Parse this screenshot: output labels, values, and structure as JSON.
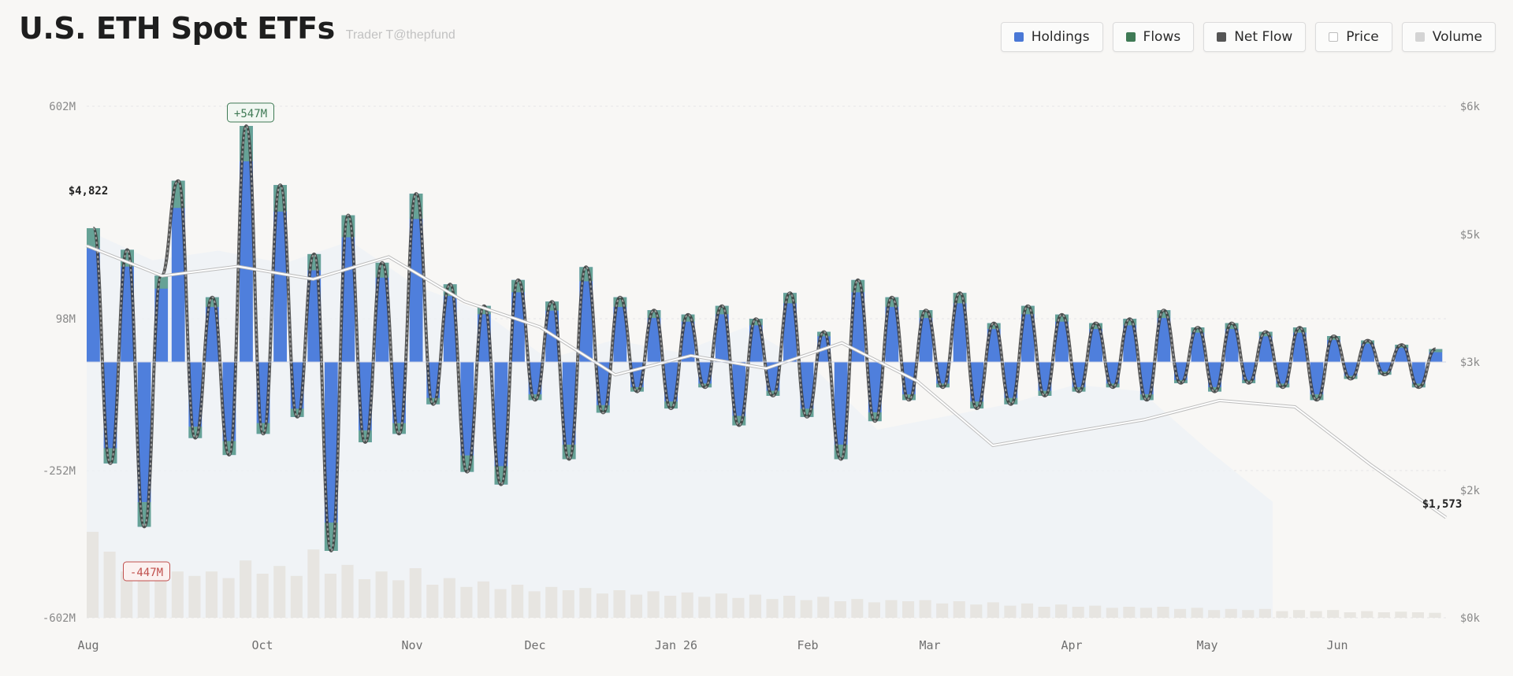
{
  "header": {
    "title": "U.S. ETH Spot ETFs",
    "subtitle": "Trader T@thepfund"
  },
  "legend": [
    {
      "key": "holdings",
      "label": "Holdings",
      "color": "#4a78d6"
    },
    {
      "key": "flows",
      "label": "Flows",
      "color": "#3f7a55"
    },
    {
      "key": "netflow",
      "label": "Net Flow",
      "color": "#555555"
    },
    {
      "key": "price",
      "label": "Price",
      "color": "#ffffff"
    },
    {
      "key": "volume",
      "label": "Volume",
      "color": "#d4d4d4"
    }
  ],
  "chart_data": {
    "type": "bar",
    "y_left": {
      "ticks": [
        "602M",
        "98M",
        "-252M",
        "-602M"
      ],
      "range": [
        -602,
        602
      ],
      "unit": "M"
    },
    "y_right": {
      "ticks": [
        "$6k",
        "$5k",
        "$3k",
        "$2k",
        "$0k"
      ],
      "range": [
        0,
        6000
      ]
    },
    "x_ticks": [
      "Aug",
      "Oct",
      "Nov",
      "Dec",
      "Jan 26",
      "Feb",
      "Mar",
      "Apr",
      "May",
      "Jun"
    ],
    "annotations": {
      "max_flow": "+547M",
      "min_flow": "-447M",
      "price_start": "$4,822",
      "price_end": "$1,573"
    },
    "price_series": [
      {
        "month": "Aug",
        "price": 4822
      },
      {
        "month": "Aug",
        "price": 4350
      },
      {
        "month": "Sep",
        "price": 4500
      },
      {
        "month": "Oct",
        "price": 4300
      },
      {
        "month": "Oct",
        "price": 4650
      },
      {
        "month": "Nov",
        "price": 3950
      },
      {
        "month": "Nov",
        "price": 3550
      },
      {
        "month": "Dec",
        "price": 2900
      },
      {
        "month": "Dec",
        "price": 3100
      },
      {
        "month": "Jan 26",
        "price": 2950
      },
      {
        "month": "Jan 26",
        "price": 3300
      },
      {
        "month": "Feb",
        "price": 2850
      },
      {
        "month": "Feb",
        "price": 2350
      },
      {
        "month": "Mar",
        "price": 2450
      },
      {
        "month": "Apr",
        "price": 2550
      },
      {
        "month": "Apr",
        "price": 2700
      },
      {
        "month": "May",
        "price": 2650
      },
      {
        "month": "Jun",
        "price": 2200
      },
      {
        "month": "Jun",
        "price": 1573
      }
    ],
    "net_flow_series_M": [
      310,
      -240,
      260,
      -390,
      200,
      420,
      -180,
      150,
      -220,
      547,
      -170,
      410,
      -130,
      250,
      -447,
      340,
      -190,
      230,
      -170,
      390,
      -100,
      180,
      -260,
      130,
      -290,
      190,
      -90,
      140,
      -230,
      220,
      -120,
      150,
      -70,
      120,
      -110,
      110,
      -60,
      130,
      -150,
      100,
      -80,
      160,
      -130,
      70,
      -230,
      190,
      -140,
      150,
      -90,
      120,
      -60,
      160,
      -110,
      90,
      -100,
      130,
      -80,
      110,
      -70,
      90,
      -60,
      100,
      -90,
      120,
      -50,
      80,
      -70,
      90,
      -50,
      70,
      -60,
      80,
      -90,
      60,
      -40,
      50,
      -30,
      40,
      -60,
      30
    ],
    "volume_series": [
      780,
      600,
      420,
      380,
      350,
      420,
      380,
      420,
      360,
      520,
      400,
      470,
      380,
      620,
      400,
      480,
      350,
      420,
      340,
      450,
      300,
      360,
      280,
      330,
      260,
      300,
      240,
      280,
      250,
      270,
      220,
      250,
      210,
      240,
      200,
      230,
      190,
      220,
      180,
      210,
      170,
      200,
      160,
      190,
      150,
      170,
      140,
      160,
      150,
      160,
      130,
      150,
      120,
      140,
      110,
      130,
      100,
      120,
      100,
      110,
      90,
      100,
      90,
      100,
      80,
      90,
      70,
      80,
      70,
      80,
      60,
      70,
      60,
      70,
      50,
      60,
      50,
      55,
      50,
      45
    ]
  }
}
